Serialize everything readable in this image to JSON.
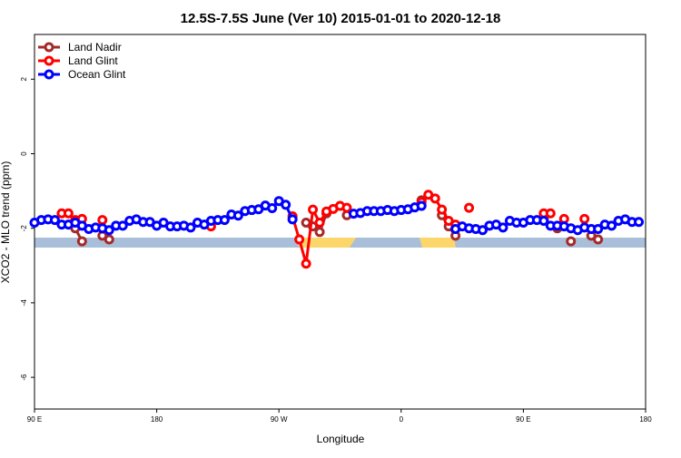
{
  "chart_data": {
    "type": "line",
    "title": "12.5S-7.5S June (Ver 10)   2015-01-01 to 2020-12-18",
    "x_label": "Longitude",
    "y_label": "XCO2 - MLO trend (ppm)",
    "xlim": [
      90,
      540
    ],
    "xticks": [
      {
        "value": 90,
        "label": "90 E"
      },
      180,
      {
        "value": 270,
        "label": "90 W"
      },
      {
        "value": 360,
        "label": "0"
      },
      {
        "value": 450,
        "label": "90 E"
      },
      {
        "value": 540,
        "label": "180"
      }
    ],
    "ylim": [
      -6.85,
      3.2
    ],
    "yticks": [
      -6,
      -4,
      -2,
      0,
      2
    ],
    "legend": "top-left",
    "x": [
      90,
      95,
      100,
      105,
      110,
      115,
      120,
      125,
      130,
      135,
      140,
      145,
      150,
      155,
      160,
      165,
      170,
      175,
      180,
      185,
      190,
      195,
      200,
      205,
      210,
      215,
      220,
      225,
      230,
      235,
      240,
      245,
      250,
      255,
      260,
      265,
      270,
      275,
      280,
      285,
      290,
      295,
      300,
      305,
      310,
      315,
      320,
      325,
      330,
      335,
      340,
      345,
      350,
      355,
      360,
      365,
      370,
      375,
      380,
      385,
      390,
      395,
      400,
      405,
      410,
      415,
      420,
      425,
      430,
      435,
      440,
      445,
      450,
      455,
      460,
      465,
      470,
      475,
      480,
      485,
      490,
      495,
      500,
      505,
      510,
      515,
      520,
      525,
      530,
      535
    ],
    "series": [
      {
        "name": "Land Nadir",
        "color": "#a52a2a",
        "values": [
          null,
          null,
          null,
          null,
          null,
          null,
          -2.0,
          -2.35,
          null,
          null,
          -2.2,
          -2.3,
          null,
          null,
          null,
          null,
          null,
          null,
          null,
          null,
          null,
          null,
          null,
          null,
          null,
          null,
          null,
          null,
          null,
          null,
          null,
          null,
          null,
          null,
          null,
          null,
          null,
          null,
          null,
          null,
          -1.85,
          -1.95,
          -2.1,
          -1.6,
          null,
          null,
          -1.65,
          null,
          null,
          null,
          null,
          null,
          null,
          null,
          null,
          null,
          null,
          -1.25,
          null,
          null,
          -1.65,
          -1.95,
          -2.2,
          null,
          null,
          null,
          null,
          null,
          null,
          null,
          null,
          null,
          null,
          null,
          null,
          -1.75,
          null,
          -2.0,
          null,
          -2.35,
          null,
          null,
          -2.2,
          -2.3,
          null,
          null,
          null,
          null,
          null,
          null
        ]
      },
      {
        "name": "Land Glint",
        "color": "#ff0000",
        "values": [
          null,
          null,
          null,
          null,
          -1.6,
          -1.6,
          -1.78,
          -1.75,
          null,
          null,
          -1.78,
          null,
          null,
          null,
          null,
          null,
          null,
          null,
          null,
          null,
          null,
          null,
          null,
          null,
          null,
          null,
          -1.95,
          null,
          null,
          null,
          null,
          null,
          null,
          null,
          null,
          null,
          null,
          null,
          -1.68,
          -2.3,
          -2.95,
          -1.5,
          -1.85,
          -1.55,
          -1.48,
          -1.4,
          -1.45,
          null,
          null,
          null,
          null,
          null,
          null,
          null,
          null,
          null,
          null,
          -1.3,
          -1.1,
          -1.2,
          -1.5,
          -1.8,
          -1.9,
          null,
          -1.45,
          null,
          null,
          null,
          null,
          null,
          null,
          null,
          null,
          null,
          null,
          -1.6,
          -1.6,
          null,
          -1.75,
          null,
          null,
          -1.75,
          null,
          null,
          null,
          null,
          null,
          null,
          null,
          null
        ]
      },
      {
        "name": "Ocean Glint",
        "color": "#0000ff",
        "values": [
          -1.85,
          -1.78,
          -1.76,
          -1.78,
          -1.9,
          -1.9,
          -1.85,
          -1.93,
          -2.02,
          -1.98,
          -2.0,
          -2.05,
          -1.93,
          -1.93,
          -1.8,
          -1.76,
          -1.83,
          -1.83,
          -1.93,
          -1.85,
          -1.95,
          -1.95,
          -1.93,
          -1.98,
          -1.85,
          -1.9,
          -1.8,
          -1.78,
          -1.78,
          -1.63,
          -1.66,
          -1.54,
          -1.51,
          -1.49,
          -1.39,
          -1.46,
          -1.27,
          -1.37,
          -1.76,
          null,
          null,
          null,
          null,
          null,
          null,
          null,
          null,
          -1.61,
          -1.59,
          -1.54,
          -1.54,
          -1.54,
          -1.51,
          -1.54,
          -1.51,
          -1.49,
          -1.44,
          -1.4,
          null,
          null,
          null,
          null,
          -2.02,
          -1.95,
          -2.0,
          -2.02,
          -2.05,
          -1.93,
          -1.9,
          -1.98,
          -1.8,
          -1.85,
          -1.85,
          -1.78,
          -1.78,
          -1.8,
          -1.93,
          -1.93,
          -1.95,
          -2.0,
          -2.05,
          -1.98,
          -2.02,
          -2.02,
          -1.9,
          -1.93,
          -1.8,
          -1.76,
          -1.83,
          -1.83
        ]
      }
    ]
  }
}
